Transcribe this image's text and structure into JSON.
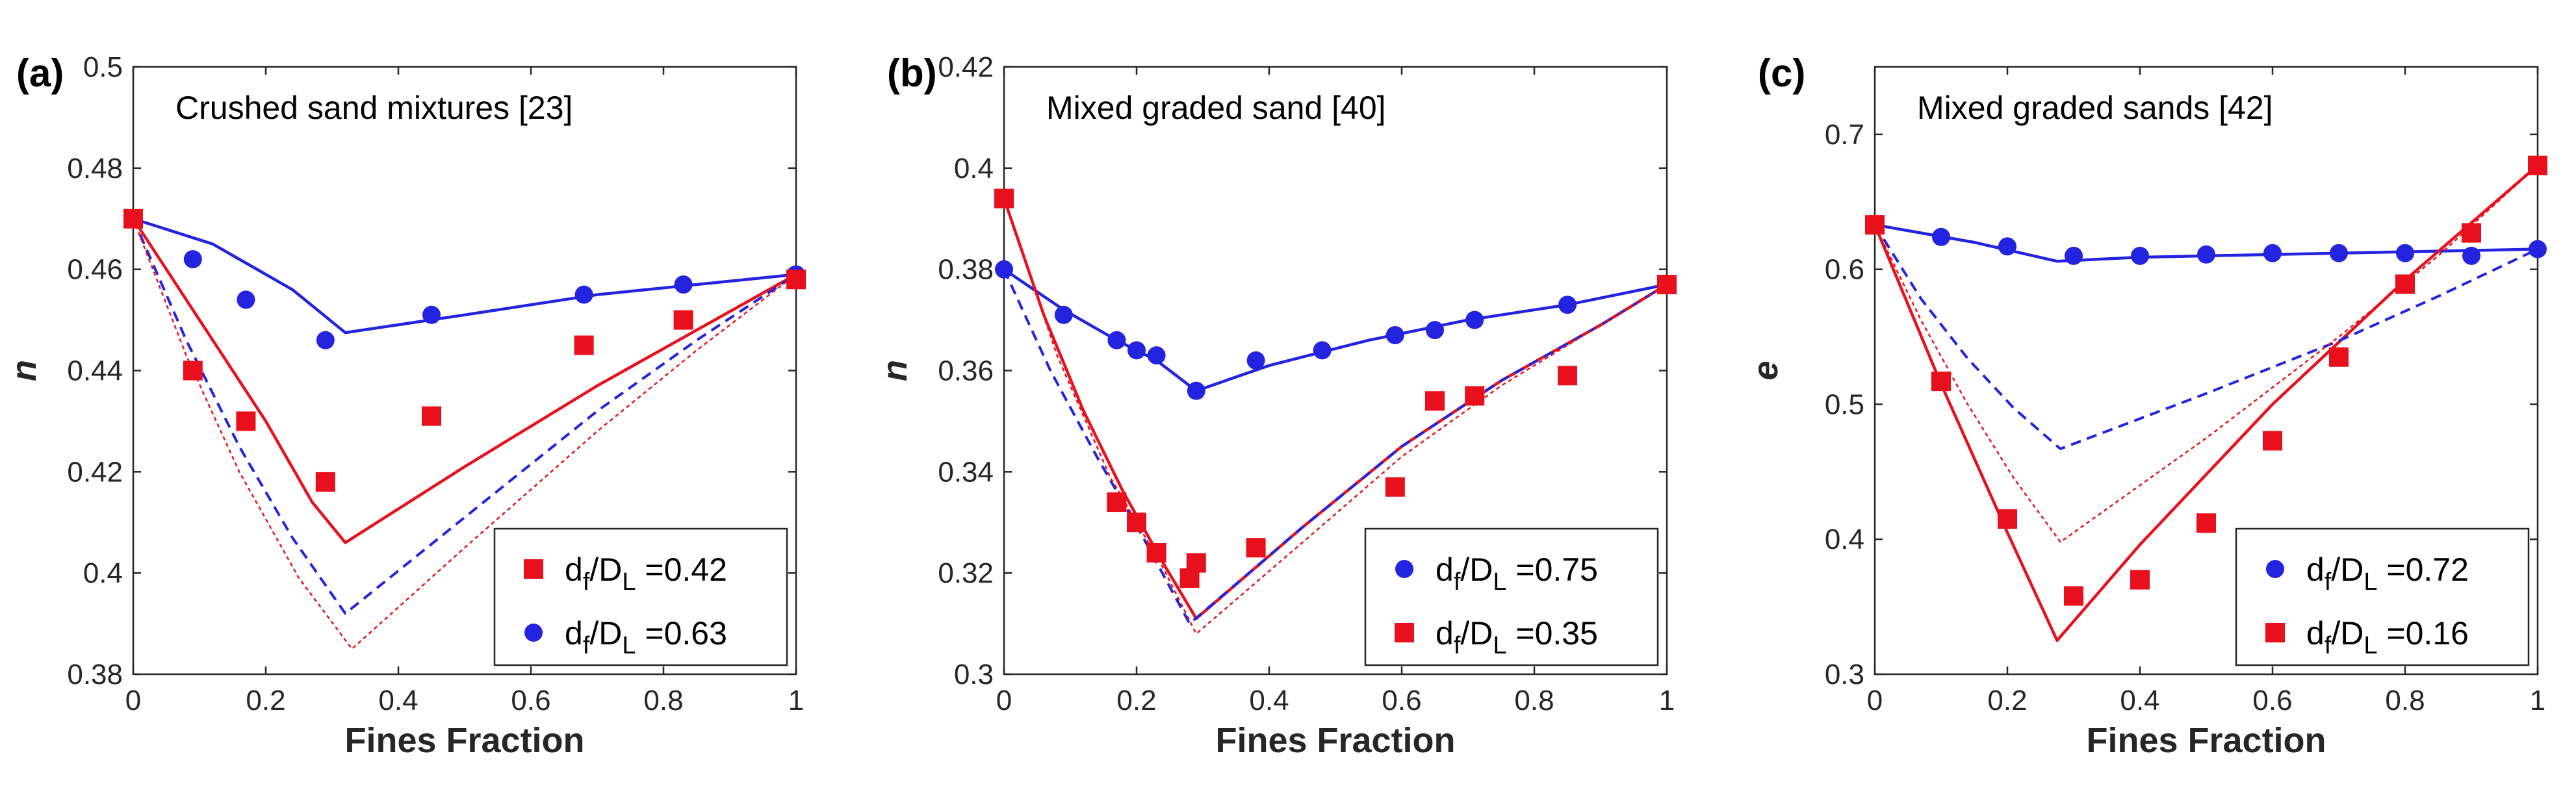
{
  "colors": {
    "blue": "#2323e0",
    "red": "#e8101c",
    "axis": "#262626"
  },
  "chart_data": [
    {
      "type": "scatter",
      "panel_label": "(a)",
      "annotation": "Crushed sand mixtures [23]",
      "xlabel": "Fines Fraction",
      "ylabel": "n",
      "xlim": [
        0,
        1
      ],
      "ylim": [
        0.38,
        0.5
      ],
      "xticks": [
        "0",
        "0.2",
        "0.4",
        "0.6",
        "0.8",
        "1"
      ],
      "yticks": [
        "0.38",
        "0.4",
        "0.42",
        "0.44",
        "0.46",
        "0.48",
        "0.5"
      ],
      "legend": {
        "position": "bottom-right",
        "entries": [
          {
            "marker": "square",
            "color": "red",
            "label": "d_f/D_L =0.42",
            "a": "d",
            "b": "f",
            "c": "/D",
            "d": "L",
            "e": " =0.42"
          },
          {
            "marker": "circle",
            "color": "blue",
            "label": "d_f/D_L =0.63",
            "a": "d",
            "b": "f",
            "c": "/D",
            "d": "L",
            "e": " =0.63"
          }
        ]
      },
      "series": [
        {
          "name": "blue points",
          "kind": "points",
          "marker": "circle",
          "color": "blue",
          "x": [
            0.0,
            0.09,
            0.17,
            0.29,
            0.45,
            0.68,
            0.83,
            1.0
          ],
          "y": [
            0.47,
            0.462,
            0.454,
            0.446,
            0.451,
            0.455,
            0.457,
            0.459
          ]
        },
        {
          "name": "red points",
          "kind": "points",
          "marker": "square",
          "color": "red",
          "x": [
            0.0,
            0.09,
            0.17,
            0.29,
            0.45,
            0.68,
            0.83,
            1.0
          ],
          "y": [
            0.47,
            0.44,
            0.43,
            0.418,
            0.431,
            0.445,
            0.45,
            0.458
          ]
        },
        {
          "name": "blue solid",
          "kind": "line",
          "color": "blue",
          "dash": "solid",
          "x": [
            0.0,
            0.12,
            0.24,
            0.32,
            0.5,
            0.7,
            0.85,
            1.0
          ],
          "y": [
            0.47,
            0.465,
            0.456,
            0.4475,
            0.451,
            0.455,
            0.457,
            0.459
          ]
        },
        {
          "name": "red solid",
          "kind": "line",
          "color": "red",
          "dash": "solid",
          "x": [
            0.0,
            0.1,
            0.2,
            0.27,
            0.32,
            0.5,
            0.7,
            0.85,
            1.0
          ],
          "y": [
            0.47,
            0.45,
            0.43,
            0.414,
            0.406,
            0.421,
            0.437,
            0.448,
            0.459
          ]
        },
        {
          "name": "blue dashed",
          "kind": "line",
          "color": "blue",
          "dash": "dashed",
          "x": [
            0.0,
            0.08,
            0.16,
            0.24,
            0.32,
            0.5,
            0.7,
            0.85,
            1.0
          ],
          "y": [
            0.47,
            0.446,
            0.425,
            0.407,
            0.392,
            0.411,
            0.432,
            0.446,
            0.459
          ]
        },
        {
          "name": "red dotted",
          "kind": "line",
          "color": "red",
          "dash": "dotted",
          "x": [
            0.0,
            0.08,
            0.16,
            0.25,
            0.33,
            0.5,
            0.7,
            0.85,
            1.0
          ],
          "y": [
            0.47,
            0.443,
            0.42,
            0.399,
            0.385,
            0.405,
            0.428,
            0.444,
            0.459
          ]
        }
      ]
    },
    {
      "type": "scatter",
      "panel_label": "(b)",
      "annotation": "Mixed graded sand [40]",
      "xlabel": "Fines Fraction",
      "ylabel": "n",
      "xlim": [
        0,
        1
      ],
      "ylim": [
        0.3,
        0.42
      ],
      "xticks": [
        "0",
        "0.2",
        "0.4",
        "0.6",
        "0.8",
        "1"
      ],
      "yticks": [
        "0.3",
        "0.32",
        "0.34",
        "0.36",
        "0.38",
        "0.4",
        "0.42"
      ],
      "legend": {
        "position": "bottom-right",
        "entries": [
          {
            "marker": "circle",
            "color": "blue",
            "label": "d_f/D_L =0.75",
            "a": "d",
            "b": "f",
            "c": "/D",
            "d": "L",
            "e": " =0.75"
          },
          {
            "marker": "square",
            "color": "red",
            "label": "d_f/D_L =0.35",
            "a": "d",
            "b": "f",
            "c": "/D",
            "d": "L",
            "e": " =0.35"
          }
        ]
      },
      "series": [
        {
          "name": "blue points",
          "kind": "points",
          "marker": "circle",
          "color": "blue",
          "x": [
            0.0,
            0.09,
            0.17,
            0.2,
            0.23,
            0.29,
            0.38,
            0.48,
            0.59,
            0.65,
            0.71,
            0.85,
            1.0
          ],
          "y": [
            0.38,
            0.371,
            0.366,
            0.364,
            0.363,
            0.356,
            0.362,
            0.364,
            0.367,
            0.368,
            0.37,
            0.373,
            0.377
          ]
        },
        {
          "name": "red points",
          "kind": "points",
          "marker": "square",
          "color": "red",
          "x": [
            0.0,
            0.17,
            0.2,
            0.23,
            0.28,
            0.29,
            0.38,
            0.59,
            0.65,
            0.71,
            0.85,
            1.0
          ],
          "y": [
            0.394,
            0.334,
            0.33,
            0.324,
            0.319,
            0.322,
            0.325,
            0.337,
            0.354,
            0.355,
            0.359,
            0.377
          ]
        },
        {
          "name": "blue solid",
          "kind": "line",
          "color": "blue",
          "dash": "solid",
          "x": [
            0.0,
            0.09,
            0.17,
            0.23,
            0.29,
            0.4,
            0.55,
            0.7,
            0.85,
            1.0
          ],
          "y": [
            0.38,
            0.372,
            0.366,
            0.362,
            0.356,
            0.361,
            0.366,
            0.37,
            0.373,
            0.377
          ]
        },
        {
          "name": "red solid",
          "kind": "line",
          "color": "red",
          "dash": "solid",
          "x": [
            0.0,
            0.06,
            0.12,
            0.18,
            0.24,
            0.29,
            0.45,
            0.6,
            0.75,
            0.9,
            1.0
          ],
          "y": [
            0.394,
            0.371,
            0.352,
            0.336,
            0.322,
            0.311,
            0.329,
            0.345,
            0.358,
            0.369,
            0.377
          ]
        },
        {
          "name": "blue dashed",
          "kind": "line",
          "color": "blue",
          "dash": "dashed",
          "x": [
            0.0,
            0.07,
            0.14,
            0.21,
            0.28,
            0.45,
            0.6,
            0.75,
            0.9,
            1.0
          ],
          "y": [
            0.38,
            0.36,
            0.343,
            0.327,
            0.31,
            0.329,
            0.345,
            0.358,
            0.369,
            0.377
          ]
        },
        {
          "name": "red dotted",
          "kind": "line",
          "color": "red",
          "dash": "dotted",
          "x": [
            0.0,
            0.08,
            0.16,
            0.24,
            0.29,
            0.45,
            0.6,
            0.75,
            0.9,
            1.0
          ],
          "y": [
            0.394,
            0.363,
            0.339,
            0.321,
            0.308,
            0.326,
            0.343,
            0.357,
            0.369,
            0.377
          ]
        }
      ]
    },
    {
      "type": "scatter",
      "panel_label": "(c)",
      "annotation": "Mixed graded sands [42]",
      "xlabel": "Fines Fraction",
      "ylabel": "e",
      "xlim": [
        0,
        1
      ],
      "ylim": [
        0.3,
        0.75
      ],
      "xticks": [
        "0",
        "0.2",
        "0.4",
        "0.6",
        "0.8",
        "1"
      ],
      "yticks": [
        "0.3",
        "0.4",
        "0.5",
        "0.6",
        "0.7"
      ],
      "legend": {
        "position": "bottom-right",
        "entries": [
          {
            "marker": "circle",
            "color": "blue",
            "label": "d_f/D_L =0.72",
            "a": "d",
            "b": "f",
            "c": "/D",
            "d": "L",
            "e": " =0.72"
          },
          {
            "marker": "square",
            "color": "red",
            "label": "d_f/D_L =0.16",
            "a": "d",
            "b": "f",
            "c": "/D",
            "d": "L",
            "e": " =0.16"
          }
        ]
      },
      "series": [
        {
          "name": "blue points",
          "kind": "points",
          "marker": "circle",
          "color": "blue",
          "x": [
            0.0,
            0.1,
            0.2,
            0.3,
            0.4,
            0.5,
            0.6,
            0.7,
            0.8,
            0.9,
            1.0
          ],
          "y": [
            0.633,
            0.624,
            0.617,
            0.61,
            0.61,
            0.611,
            0.612,
            0.612,
            0.612,
            0.61,
            0.615
          ]
        },
        {
          "name": "red points",
          "kind": "points",
          "marker": "square",
          "color": "red",
          "x": [
            0.0,
            0.1,
            0.2,
            0.3,
            0.4,
            0.5,
            0.6,
            0.7,
            0.8,
            0.9,
            1.0
          ],
          "y": [
            0.633,
            0.517,
            0.415,
            0.358,
            0.37,
            0.412,
            0.473,
            0.535,
            0.589,
            0.627,
            0.677
          ]
        },
        {
          "name": "blue solid",
          "kind": "line",
          "color": "blue",
          "dash": "solid",
          "x": [
            0.0,
            0.15,
            0.275,
            0.4,
            0.6,
            0.8,
            1.0
          ],
          "y": [
            0.633,
            0.62,
            0.606,
            0.609,
            0.611,
            0.613,
            0.615
          ]
        },
        {
          "name": "red solid",
          "kind": "line",
          "color": "red",
          "dash": "solid",
          "x": [
            0.0,
            0.1,
            0.2,
            0.275,
            0.4,
            0.6,
            0.8,
            1.0
          ],
          "y": [
            0.633,
            0.515,
            0.405,
            0.325,
            0.396,
            0.5,
            0.592,
            0.677
          ]
        },
        {
          "name": "blue dashed",
          "kind": "line",
          "color": "blue",
          "dash": "dashed",
          "x": [
            0.0,
            0.07,
            0.14,
            0.21,
            0.28,
            0.5,
            0.7,
            0.85,
            1.0
          ],
          "y": [
            0.633,
            0.578,
            0.534,
            0.497,
            0.467,
            0.508,
            0.547,
            0.58,
            0.615
          ]
        },
        {
          "name": "red dotted",
          "kind": "line",
          "color": "red",
          "dash": "dotted",
          "x": [
            0.0,
            0.07,
            0.14,
            0.21,
            0.28,
            0.5,
            0.7,
            0.85,
            1.0
          ],
          "y": [
            0.633,
            0.562,
            0.5,
            0.445,
            0.398,
            0.475,
            0.55,
            0.61,
            0.677
          ]
        }
      ]
    }
  ]
}
